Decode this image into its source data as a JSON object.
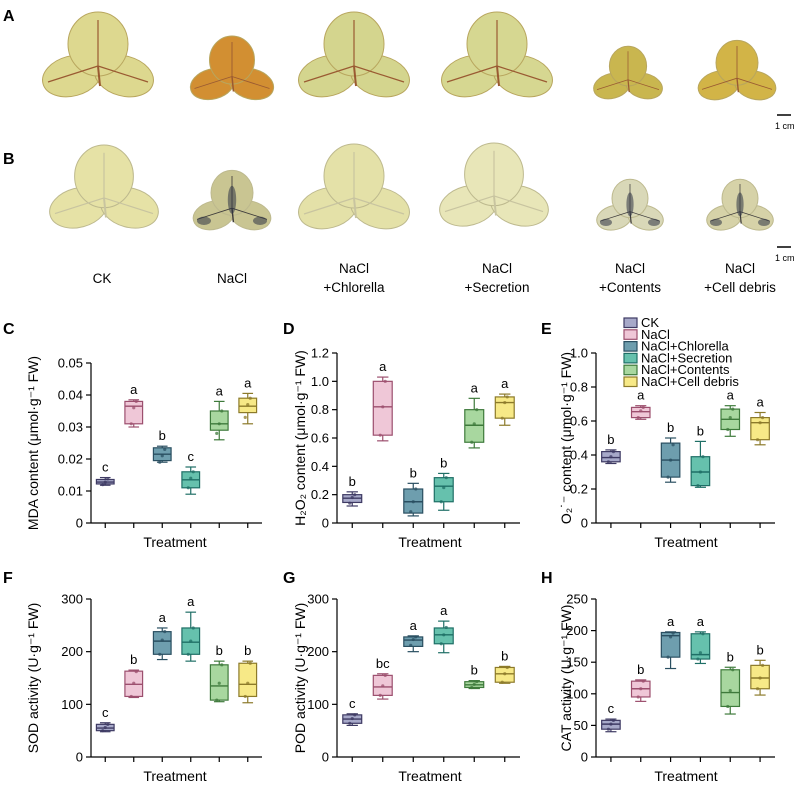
{
  "panels": {
    "A": "A",
    "B": "B",
    "C": "C",
    "D": "D",
    "E": "E",
    "F": "F",
    "G": "G",
    "H": "H"
  },
  "scale_bar": "1 cm",
  "treatment_labels": [
    [
      "CK"
    ],
    [
      "NaCl"
    ],
    [
      "NaCl",
      "+Chlorella"
    ],
    [
      "NaCl",
      "+Secretion"
    ],
    [
      "NaCl",
      "+Contents"
    ],
    [
      "NaCl",
      "+Cell debris"
    ]
  ],
  "colors": {
    "leaf_A": [
      "#ddd88f",
      "#d28f32",
      "#d4d58e",
      "#d6d791",
      "#c9b64f",
      "#d2b447"
    ],
    "leaf_B": [
      "#e6e2a6",
      "#c9c592",
      "#e4e1a8",
      "#e8e6b8",
      "#d9d8b8",
      "#d6d2a8"
    ],
    "box_fill": [
      "#a7a9c9",
      "#efc7d7",
      "#6e9eae",
      "#66c1ad",
      "#a8d79f",
      "#f7e987"
    ],
    "box_stroke": [
      "#3e3a63",
      "#9c4f6e",
      "#2a4f61",
      "#1f6f66",
      "#3e7a3b",
      "#8c7a2a"
    ]
  },
  "legend": [
    "CK",
    "NaCl",
    "NaCl+Chlorella",
    "NaCl+Secretion",
    "NaCl+Contents",
    "NaCl+Cell debris"
  ],
  "chart_data": [
    {
      "id": "C",
      "type": "box",
      "xlabel": "Treatment",
      "ylabel": "MDA content (μmol·g⁻¹ FW)",
      "ylim": [
        0,
        0.05
      ],
      "yticks": [
        0,
        0.01,
        0.02,
        0.03,
        0.04,
        0.05
      ],
      "ytick_labels": [
        "0",
        "0.01",
        "0.02",
        "0.03",
        "0.04",
        "0.05"
      ],
      "boxes": [
        {
          "min": 0.0118,
          "q1": 0.0122,
          "median": 0.0128,
          "q3": 0.0136,
          "max": 0.0142,
          "points": [
            0.012,
            0.0128,
            0.0138
          ]
        },
        {
          "min": 0.03,
          "q1": 0.031,
          "median": 0.0365,
          "q3": 0.038,
          "max": 0.0385,
          "points": [
            0.031,
            0.036,
            0.038
          ]
        },
        {
          "min": 0.019,
          "q1": 0.0195,
          "median": 0.0215,
          "q3": 0.0235,
          "max": 0.024,
          "points": [
            0.019,
            0.021,
            0.023
          ]
        },
        {
          "min": 0.009,
          "q1": 0.011,
          "median": 0.0135,
          "q3": 0.016,
          "max": 0.0175,
          "points": [
            0.011,
            0.014,
            0.016
          ]
        },
        {
          "min": 0.026,
          "q1": 0.029,
          "median": 0.031,
          "q3": 0.035,
          "max": 0.038,
          "points": [
            0.028,
            0.031,
            0.035
          ]
        },
        {
          "min": 0.031,
          "q1": 0.0345,
          "median": 0.0365,
          "q3": 0.039,
          "max": 0.0405,
          "points": [
            0.033,
            0.037,
            0.039
          ]
        }
      ],
      "letters": [
        "c",
        "a",
        "b",
        "c",
        "a",
        "a"
      ]
    },
    {
      "id": "D",
      "type": "box",
      "xlabel": "Treatment",
      "ylabel": "H₂O₂ content (μmol·g⁻¹ FW)",
      "ylim": [
        0,
        1.2
      ],
      "yticks": [
        0,
        0.2,
        0.4,
        0.6,
        0.8,
        1.0,
        1.2
      ],
      "ytick_labels": [
        "0",
        "0.2",
        "0.4",
        "0.6",
        "0.8",
        "1.0",
        "1.2"
      ],
      "boxes": [
        {
          "min": 0.12,
          "q1": 0.145,
          "median": 0.175,
          "q3": 0.2,
          "max": 0.22,
          "points": [
            0.14,
            0.18,
            0.2
          ]
        },
        {
          "min": 0.58,
          "q1": 0.62,
          "median": 0.82,
          "q3": 1.0,
          "max": 1.03,
          "points": [
            0.62,
            0.82,
            1.0
          ]
        },
        {
          "min": 0.05,
          "q1": 0.07,
          "median": 0.15,
          "q3": 0.24,
          "max": 0.28,
          "points": [
            0.08,
            0.15,
            0.24
          ]
        },
        {
          "min": 0.09,
          "q1": 0.15,
          "median": 0.26,
          "q3": 0.32,
          "max": 0.35,
          "points": [
            0.15,
            0.25,
            0.32
          ]
        },
        {
          "min": 0.53,
          "q1": 0.57,
          "median": 0.69,
          "q3": 0.8,
          "max": 0.88,
          "points": [
            0.57,
            0.7,
            0.8
          ]
        },
        {
          "min": 0.69,
          "q1": 0.74,
          "median": 0.85,
          "q3": 0.89,
          "max": 0.91,
          "points": [
            0.74,
            0.85,
            0.89
          ]
        }
      ],
      "letters": [
        "b",
        "a",
        "b",
        "b",
        "a",
        "a"
      ]
    },
    {
      "id": "E",
      "type": "box",
      "xlabel": "Treatment",
      "ylabel": "O₂˙⁻ content (μmol·g⁻¹ FW)",
      "ylim": [
        0,
        1.0
      ],
      "yticks": [
        0,
        0.2,
        0.4,
        0.6,
        0.8,
        1.0
      ],
      "ytick_labels": [
        "0",
        "0.2",
        "0.4",
        "0.6",
        "0.8",
        "1.0"
      ],
      "boxes": [
        {
          "min": 0.35,
          "q1": 0.36,
          "median": 0.385,
          "q3": 0.42,
          "max": 0.43,
          "points": [
            0.36,
            0.39,
            0.42
          ]
        },
        {
          "min": 0.61,
          "q1": 0.62,
          "median": 0.655,
          "q3": 0.68,
          "max": 0.69,
          "points": [
            0.62,
            0.66,
            0.68
          ]
        },
        {
          "min": 0.24,
          "q1": 0.27,
          "median": 0.37,
          "q3": 0.47,
          "max": 0.5,
          "points": [
            0.27,
            0.37,
            0.46
          ]
        },
        {
          "min": 0.21,
          "q1": 0.22,
          "median": 0.3,
          "q3": 0.39,
          "max": 0.48,
          "points": [
            0.22,
            0.3,
            0.39
          ]
        },
        {
          "min": 0.51,
          "q1": 0.55,
          "median": 0.61,
          "q3": 0.67,
          "max": 0.69,
          "points": [
            0.55,
            0.62,
            0.67
          ]
        },
        {
          "min": 0.46,
          "q1": 0.49,
          "median": 0.59,
          "q3": 0.62,
          "max": 0.65,
          "points": [
            0.49,
            0.59,
            0.62
          ]
        }
      ],
      "letters": [
        "b",
        "a",
        "b",
        "b",
        "a",
        "a"
      ]
    },
    {
      "id": "F",
      "type": "box",
      "xlabel": "Treatment",
      "ylabel": "SOD activity (U·g⁻¹ FW)",
      "ylim": [
        0,
        300
      ],
      "yticks": [
        0,
        100,
        200,
        300
      ],
      "ytick_labels": [
        "0",
        "100",
        "200",
        "300"
      ],
      "boxes": [
        {
          "min": 48,
          "q1": 50,
          "median": 55,
          "q3": 62,
          "max": 65,
          "points": [
            50,
            56,
            62
          ]
        },
        {
          "min": 113,
          "q1": 115,
          "median": 138,
          "q3": 163,
          "max": 165,
          "points": [
            115,
            140,
            162
          ]
        },
        {
          "min": 185,
          "q1": 195,
          "median": 220,
          "q3": 238,
          "max": 245,
          "points": [
            195,
            222,
            238
          ]
        },
        {
          "min": 182,
          "q1": 195,
          "median": 218,
          "q3": 245,
          "max": 275,
          "points": [
            195,
            220,
            245
          ]
        },
        {
          "min": 105,
          "q1": 108,
          "median": 135,
          "q3": 175,
          "max": 182,
          "points": [
            108,
            140,
            175
          ]
        },
        {
          "min": 103,
          "q1": 115,
          "median": 138,
          "q3": 178,
          "max": 182,
          "points": [
            115,
            140,
            178
          ]
        }
      ],
      "letters": [
        "c",
        "b",
        "a",
        "a",
        "b",
        "b"
      ]
    },
    {
      "id": "G",
      "type": "box",
      "xlabel": "Treatment",
      "ylabel": "POD activity (U·g⁻¹ FW)",
      "ylim": [
        0,
        300
      ],
      "yticks": [
        0,
        100,
        200,
        300
      ],
      "ytick_labels": [
        "0",
        "100",
        "200",
        "300"
      ],
      "boxes": [
        {
          "min": 60,
          "q1": 64,
          "median": 72,
          "q3": 80,
          "max": 82,
          "points": [
            64,
            73,
            80
          ]
        },
        {
          "min": 110,
          "q1": 117,
          "median": 133,
          "q3": 155,
          "max": 158,
          "points": [
            117,
            135,
            155
          ]
        },
        {
          "min": 200,
          "q1": 210,
          "median": 222,
          "q3": 228,
          "max": 230,
          "points": [
            212,
            223,
            228
          ]
        },
        {
          "min": 198,
          "q1": 215,
          "median": 232,
          "q3": 245,
          "max": 258,
          "points": [
            215,
            232,
            246
          ]
        },
        {
          "min": 130,
          "q1": 132,
          "median": 137,
          "q3": 143,
          "max": 145,
          "points": [
            132,
            138,
            143
          ]
        },
        {
          "min": 140,
          "q1": 142,
          "median": 158,
          "q3": 170,
          "max": 172,
          "points": [
            142,
            158,
            170
          ]
        }
      ],
      "letters": [
        "c",
        "bc",
        "a",
        "a",
        "b",
        "b"
      ]
    },
    {
      "id": "H",
      "type": "box",
      "xlabel": "Treatment",
      "ylabel": "CAT activity (U·g⁻¹ FW)",
      "ylim": [
        0,
        250
      ],
      "yticks": [
        0,
        50,
        100,
        150,
        200,
        250
      ],
      "ytick_labels": [
        "0",
        "50",
        "100",
        "150",
        "200",
        "250"
      ],
      "boxes": [
        {
          "min": 40,
          "q1": 44,
          "median": 52,
          "q3": 58,
          "max": 60,
          "points": [
            44,
            52,
            58
          ]
        },
        {
          "min": 88,
          "q1": 95,
          "median": 108,
          "q3": 120,
          "max": 122,
          "points": [
            95,
            108,
            120
          ]
        },
        {
          "min": 140,
          "q1": 158,
          "median": 192,
          "q3": 197,
          "max": 198,
          "points": [
            158,
            190,
            196
          ]
        },
        {
          "min": 148,
          "q1": 155,
          "median": 162,
          "q3": 195,
          "max": 198,
          "points": [
            155,
            165,
            195
          ]
        },
        {
          "min": 68,
          "q1": 80,
          "median": 102,
          "q3": 138,
          "max": 142,
          "points": [
            80,
            105,
            138
          ]
        },
        {
          "min": 98,
          "q1": 108,
          "median": 125,
          "q3": 145,
          "max": 153,
          "points": [
            108,
            125,
            145
          ]
        }
      ],
      "letters": [
        "c",
        "b",
        "a",
        "a",
        "b",
        "b"
      ]
    }
  ]
}
